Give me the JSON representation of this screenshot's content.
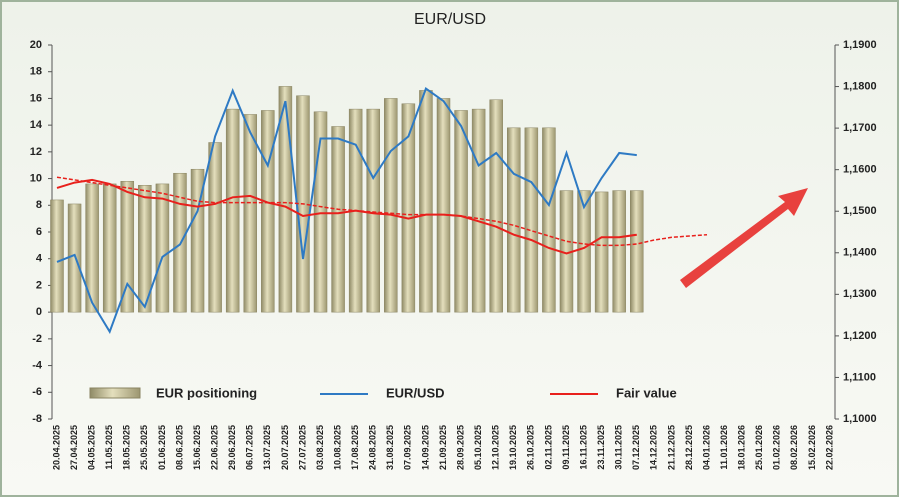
{
  "chart_data": {
    "type": "bar",
    "title": "EUR/USD",
    "categories": [
      "20.04.2025",
      "27.04.2025",
      "04.05.2025",
      "11.05.2025",
      "18.05.2025",
      "25.05.2025",
      "01.06.2025",
      "08.06.2025",
      "15.06.2025",
      "22.06.2025",
      "29.06.2025",
      "06.07.2025",
      "13.07.2025",
      "20.07.2025",
      "27.07.2025",
      "03.08.2025",
      "10.08.2025",
      "17.08.2025",
      "24.08.2025",
      "31.08.2025",
      "07.09.2025",
      "14.09.2025",
      "21.09.2025",
      "28.09.2025",
      "05.10.2025",
      "12.10.2025",
      "19.10.2025",
      "26.10.2025",
      "02.11.2025",
      "09.11.2025",
      "16.11.2025",
      "23.11.2025",
      "30.11.2025",
      "07.12.2025",
      "14.12.2025",
      "21.12.2025",
      "28.12.2025",
      "04.01.2026",
      "11.01.2026",
      "18.01.2026",
      "25.01.2026",
      "01.02.2026",
      "08.02.2026",
      "15.02.2026",
      "22.02.2026"
    ],
    "series": [
      {
        "name": "EUR positioning",
        "type": "bar",
        "color": "#c9c39c",
        "values": [
          8.4,
          8.1,
          9.6,
          9.6,
          9.8,
          9.5,
          9.6,
          10.4,
          10.7,
          12.7,
          15.2,
          14.8,
          15.1,
          16.9,
          16.2,
          15.0,
          13.9,
          15.2,
          15.2,
          16.0,
          15.6,
          16.6,
          16.0,
          15.1,
          15.2,
          15.9,
          13.8,
          13.8,
          13.8,
          9.1,
          9.1,
          9.0,
          9.1,
          9.1,
          null,
          null,
          null,
          null,
          null,
          null,
          null,
          null,
          null,
          null,
          null
        ]
      },
      {
        "name": "EUR/USD",
        "type": "line",
        "axis": "y2",
        "color": "#2e7ac4",
        "values": [
          1.1378,
          1.1395,
          1.128,
          1.121,
          1.1325,
          1.127,
          1.139,
          1.142,
          1.15,
          1.168,
          1.179,
          1.169,
          1.161,
          1.1765,
          1.1385,
          1.1675,
          1.1675,
          1.166,
          1.158,
          1.1645,
          1.168,
          1.1795,
          1.1765,
          1.1705,
          1.161,
          1.164,
          1.159,
          1.157,
          1.1515,
          1.164,
          1.151,
          1.158,
          1.164,
          1.1635,
          null,
          null,
          null,
          null,
          null,
          null,
          null,
          null,
          null,
          null,
          null
        ]
      },
      {
        "name": "Fair value",
        "type": "line",
        "color": "#e8201c",
        "values": [
          9.3,
          9.7,
          9.9,
          9.6,
          9.0,
          8.6,
          8.5,
          8.1,
          7.9,
          8.1,
          8.6,
          8.7,
          8.2,
          7.9,
          7.2,
          7.4,
          7.4,
          7.6,
          7.4,
          7.3,
          7.0,
          7.3,
          7.3,
          7.2,
          6.8,
          6.4,
          5.8,
          5.4,
          4.8,
          4.4,
          4.8,
          5.6,
          5.6,
          5.8,
          null,
          null,
          null,
          null,
          null,
          null,
          null,
          null,
          null,
          null,
          null
        ]
      },
      {
        "type": "line",
        "dashed": true,
        "color": "#e8201c",
        "values": [
          10.1,
          9.9,
          9.7,
          9.5,
          9.3,
          9.1,
          8.9,
          8.6,
          8.3,
          8.2,
          8.2,
          8.2,
          8.2,
          8.2,
          8.1,
          7.9,
          7.7,
          7.6,
          7.5,
          7.4,
          7.3,
          7.3,
          7.3,
          7.2,
          7.0,
          6.8,
          6.5,
          6.1,
          5.7,
          5.3,
          5.1,
          5.0,
          5.0,
          5.1,
          5.4,
          5.6,
          5.7,
          5.8,
          null,
          null,
          null,
          null,
          null,
          null,
          null
        ]
      }
    ],
    "ylim": [
      -8,
      20
    ],
    "yticks": [
      -8,
      -6,
      -4,
      -2,
      0,
      2,
      4,
      6,
      8,
      10,
      12,
      14,
      16,
      18,
      20
    ],
    "y2lim": [
      1.1,
      1.19
    ],
    "y2ticks": [
      {
        "value": 1.1,
        "label": "1,1000"
      },
      {
        "value": 1.11,
        "label": "1,1100"
      },
      {
        "value": 1.12,
        "label": "1,1200"
      },
      {
        "value": 1.13,
        "label": "1,1300"
      },
      {
        "value": 1.14,
        "label": "1,1400"
      },
      {
        "value": 1.15,
        "label": "1,1500"
      },
      {
        "value": 1.16,
        "label": "1,1600"
      },
      {
        "value": 1.17,
        "label": "1,1700"
      },
      {
        "value": 1.18,
        "label": "1,1800"
      },
      {
        "value": 1.19,
        "label": "1,1900"
      }
    ],
    "grid": false
  }
}
